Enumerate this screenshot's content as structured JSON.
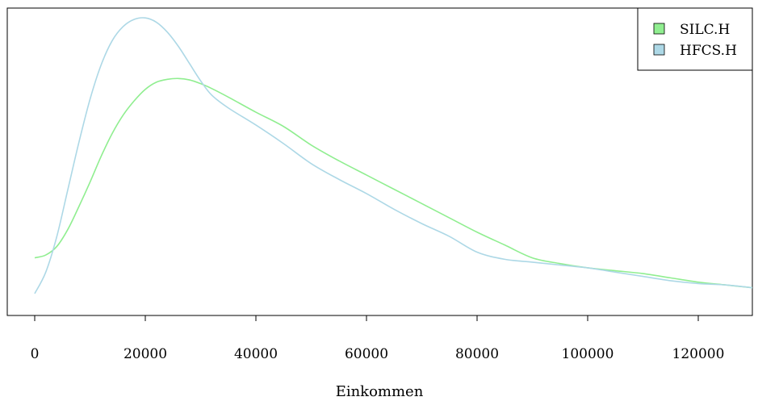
{
  "chart_data": {
    "type": "line",
    "title": "",
    "xlabel": "Einkommen",
    "ylabel": "",
    "xlim": [
      -5000,
      130000
    ],
    "ylim": [
      0,
      1
    ],
    "grid": false,
    "legend_position": "top-right",
    "x_ticks": [
      0,
      20000,
      40000,
      60000,
      80000,
      100000,
      120000
    ],
    "x_tick_labels": [
      "0",
      "20000",
      "40000",
      "60000",
      "80000",
      "100000",
      "120000"
    ],
    "series": [
      {
        "name": "SILC.H",
        "color": "#90ee90",
        "x": [
          0,
          2000,
          4000,
          6000,
          8000,
          10000,
          12000,
          14000,
          16000,
          18000,
          20000,
          22000,
          24000,
          26000,
          28000,
          30000,
          32000,
          35000,
          40000,
          45000,
          50000,
          55000,
          60000,
          65000,
          70000,
          75000,
          80000,
          85000,
          90000,
          95000,
          100000,
          105000,
          110000,
          115000,
          120000,
          125000,
          130000
        ],
        "y": [
          0.165,
          0.175,
          0.205,
          0.265,
          0.345,
          0.43,
          0.52,
          0.6,
          0.665,
          0.715,
          0.755,
          0.78,
          0.79,
          0.793,
          0.788,
          0.775,
          0.758,
          0.728,
          0.675,
          0.625,
          0.56,
          0.505,
          0.455,
          0.405,
          0.355,
          0.305,
          0.255,
          0.21,
          0.165,
          0.145,
          0.13,
          0.12,
          0.11,
          0.095,
          0.08,
          0.07,
          0.06
        ]
      },
      {
        "name": "HFCS.H",
        "color": "#add8e6",
        "x": [
          0,
          2000,
          4000,
          6000,
          8000,
          10000,
          12000,
          14000,
          16000,
          18000,
          20000,
          22000,
          24000,
          26000,
          28000,
          30000,
          32000,
          35000,
          40000,
          45000,
          50000,
          55000,
          60000,
          65000,
          70000,
          75000,
          80000,
          85000,
          90000,
          95000,
          100000,
          105000,
          110000,
          115000,
          120000,
          125000,
          130000
        ],
        "y": [
          0.04,
          0.115,
          0.24,
          0.405,
          0.57,
          0.72,
          0.84,
          0.925,
          0.975,
          1.0,
          1.005,
          0.99,
          0.955,
          0.905,
          0.845,
          0.785,
          0.735,
          0.69,
          0.63,
          0.565,
          0.495,
          0.44,
          0.39,
          0.335,
          0.285,
          0.24,
          0.185,
          0.16,
          0.15,
          0.14,
          0.13,
          0.115,
          0.1,
          0.085,
          0.075,
          0.07,
          0.06
        ]
      }
    ]
  }
}
